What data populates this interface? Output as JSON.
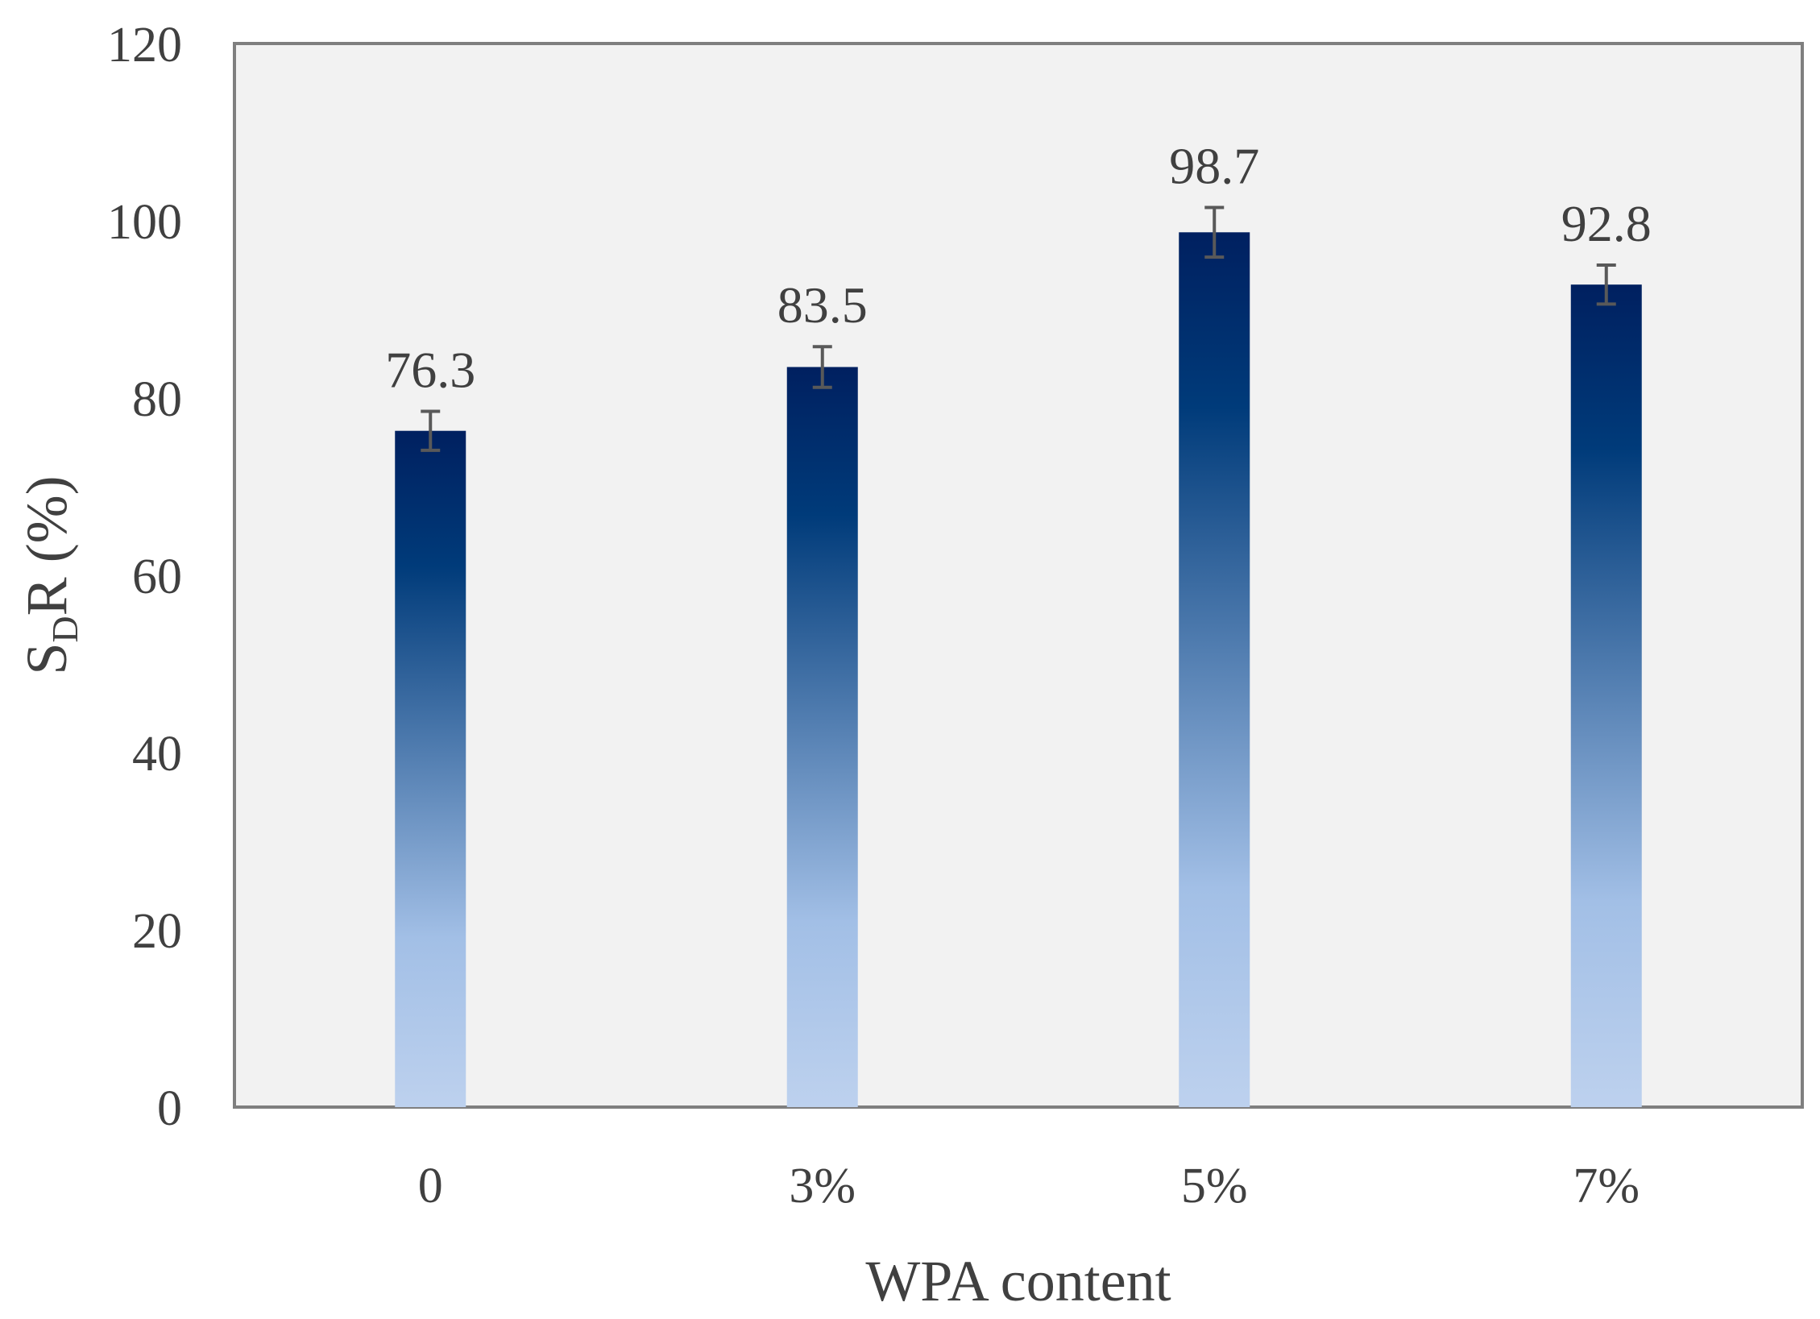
{
  "chart_data": {
    "type": "bar",
    "title": "",
    "xlabel": "WPA content",
    "ylabel": {
      "main": "S",
      "subscript": "D",
      "rest": "R (%)"
    },
    "categories": [
      "0",
      "3%",
      "5%",
      "7%"
    ],
    "values": [
      76.3,
      83.5,
      98.7,
      92.8
    ],
    "value_labels": [
      "76.3",
      "83.5",
      "98.7",
      "92.8"
    ],
    "error": [
      2.2,
      2.3,
      2.8,
      2.2
    ],
    "ylim": [
      0,
      120
    ],
    "yticks": [
      "0",
      "20",
      "40",
      "60",
      "80",
      "100",
      "120"
    ],
    "grid": false,
    "legend": "none",
    "colors": {
      "plot_background": "#f2f2f2",
      "frame": "#7f7f7f",
      "bar_top": "#002060",
      "bar_mid": "#003b7a",
      "bar_light": "#a2bfe6",
      "bar_bottom": "#bdd1ee",
      "error_bar": "#595959"
    }
  }
}
